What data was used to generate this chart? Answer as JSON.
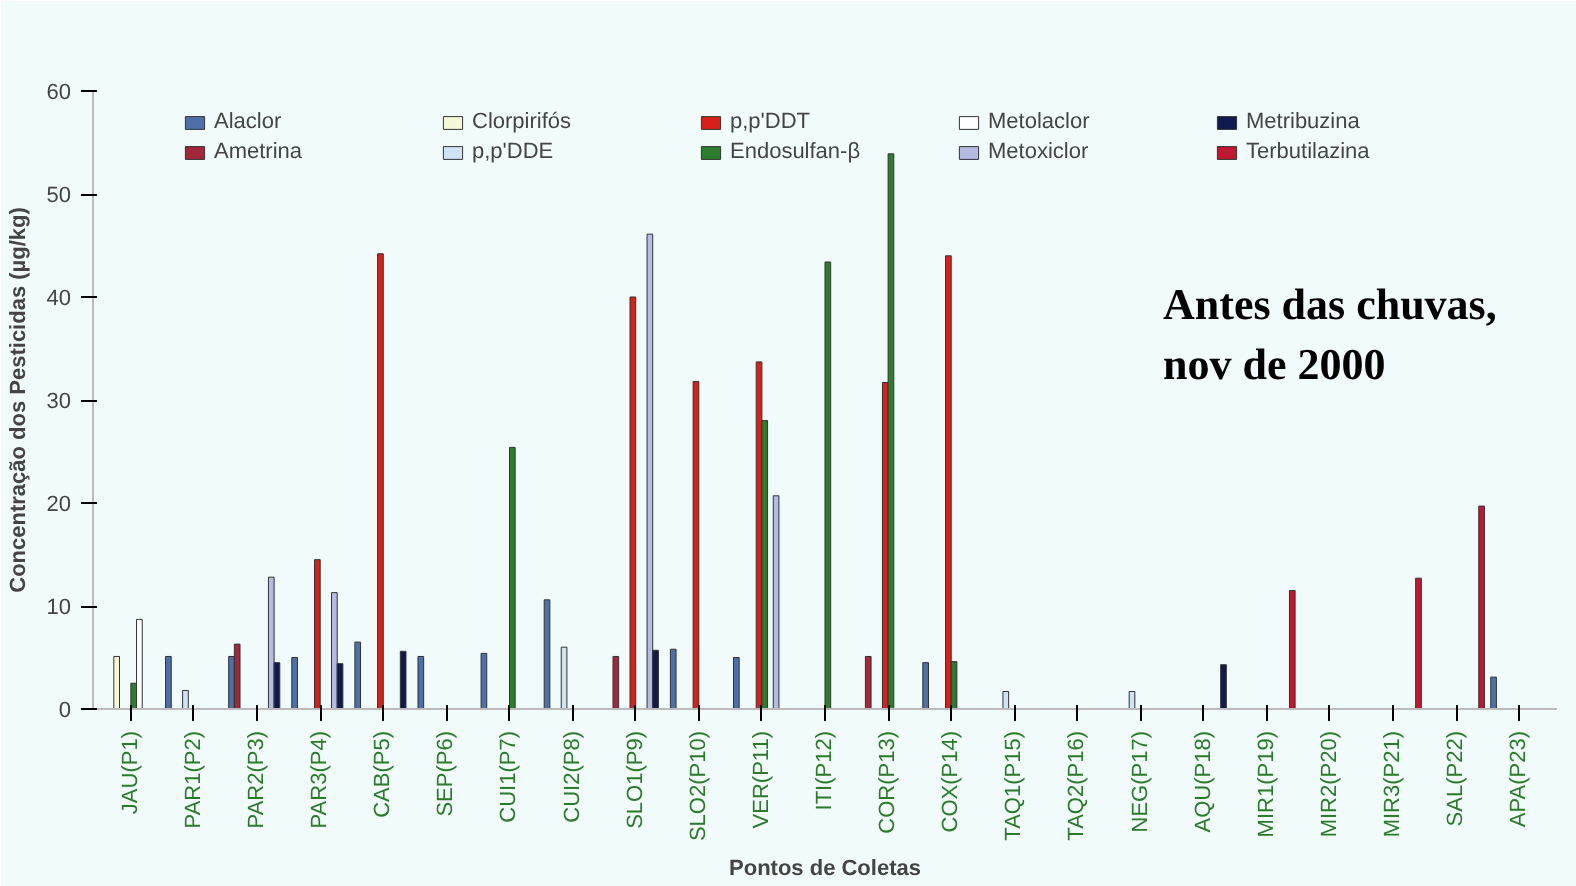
{
  "chart_data": {
    "type": "bar",
    "xlabel": "Pontos de Coletas",
    "ylabel": "Concentração dos Pesticidas (µg/kg)",
    "categories": [
      "JAU(P1)",
      "PAR1(P2)",
      "PAR2(P3)",
      "PAR3(P4)",
      "CAB(P5)",
      "SEP(P6)",
      "CUI1(P7)",
      "CUI2(P8)",
      "SLO1(P9)",
      "SLO2(P10)",
      "VER(P11)",
      "ITI(P12)",
      "COR(P13)",
      "COX(P14)",
      "TAQ1(P15)",
      "TAQ2(P16)",
      "NEG(P17)",
      "AQU(P18)",
      "MIR1(P19)",
      "MIR2(P20)",
      "MIR3(P21)",
      "SAL(P22)",
      "APA(P23)"
    ],
    "series": [
      {
        "name": "Alaclor",
        "color": "#4f6fa8",
        "values": [
          null,
          5.1,
          5.1,
          5.0,
          6.5,
          5.1,
          5.4,
          10.6,
          null,
          5.8,
          5.0,
          null,
          null,
          4.5,
          null,
          null,
          null,
          null,
          null,
          null,
          null,
          null,
          3.1
        ]
      },
      {
        "name": "Ametrina",
        "color": "#a0283a",
        "values": [
          null,
          null,
          6.3,
          null,
          null,
          null,
          null,
          null,
          5.1,
          null,
          null,
          null,
          5.1,
          null,
          null,
          null,
          null,
          null,
          null,
          null,
          null,
          null,
          null
        ]
      },
      {
        "name": "Clorpirifós",
        "color": "#f4f8d8",
        "values": [
          5.1,
          null,
          null,
          null,
          null,
          null,
          null,
          null,
          null,
          null,
          null,
          null,
          null,
          null,
          null,
          null,
          null,
          null,
          null,
          null,
          null,
          null,
          null
        ]
      },
      {
        "name": "p,p'DDE",
        "color": "#cfe3f4",
        "values": [
          null,
          1.8,
          null,
          null,
          null,
          null,
          null,
          6.0,
          null,
          null,
          null,
          null,
          null,
          null,
          1.7,
          null,
          1.7,
          null,
          null,
          null,
          null,
          null,
          null
        ]
      },
      {
        "name": "p,p'DDT",
        "color": "#d8201a",
        "values": [
          null,
          null,
          null,
          14.5,
          44.2,
          null,
          null,
          null,
          40.0,
          31.8,
          33.7,
          null,
          31.7,
          44.0,
          null,
          null,
          null,
          null,
          null,
          null,
          null,
          null,
          null
        ]
      },
      {
        "name": "Endosulfan-β",
        "color": "#2e7d2e",
        "values": [
          2.5,
          null,
          null,
          null,
          null,
          null,
          25.4,
          null,
          null,
          null,
          28.0,
          43.4,
          53.9,
          4.6,
          null,
          null,
          null,
          null,
          null,
          null,
          null,
          null,
          null
        ]
      },
      {
        "name": "Metolaclor",
        "color": "#ffffff",
        "values": [
          8.7,
          null,
          null,
          null,
          null,
          null,
          null,
          null,
          null,
          null,
          null,
          null,
          null,
          null,
          null,
          null,
          null,
          null,
          null,
          null,
          null,
          null,
          null
        ]
      },
      {
        "name": "Metoxiclor",
        "color": "#b4bce4",
        "values": [
          null,
          null,
          12.8,
          11.3,
          null,
          null,
          null,
          null,
          46.1,
          null,
          20.7,
          null,
          null,
          null,
          null,
          null,
          null,
          null,
          null,
          null,
          null,
          null,
          null
        ]
      },
      {
        "name": "Metribuzina",
        "color": "#101a50",
        "values": [
          null,
          null,
          4.5,
          4.4,
          5.6,
          null,
          null,
          null,
          5.7,
          null,
          null,
          null,
          null,
          null,
          null,
          null,
          null,
          4.3,
          null,
          null,
          null,
          null,
          null
        ]
      },
      {
        "name": "Terbutilazina",
        "color": "#c01830",
        "values": [
          null,
          null,
          null,
          null,
          null,
          null,
          null,
          null,
          null,
          null,
          null,
          null,
          null,
          null,
          null,
          null,
          null,
          null,
          11.5,
          null,
          12.7,
          19.7,
          null
        ]
      }
    ],
    "ylim": [
      0,
      60
    ],
    "yticks": [
      0,
      10,
      20,
      30,
      40,
      50,
      60
    ],
    "legend": "top",
    "grid": false,
    "annotations": [
      "Antes das chuvas,\nnov de 2000"
    ]
  }
}
